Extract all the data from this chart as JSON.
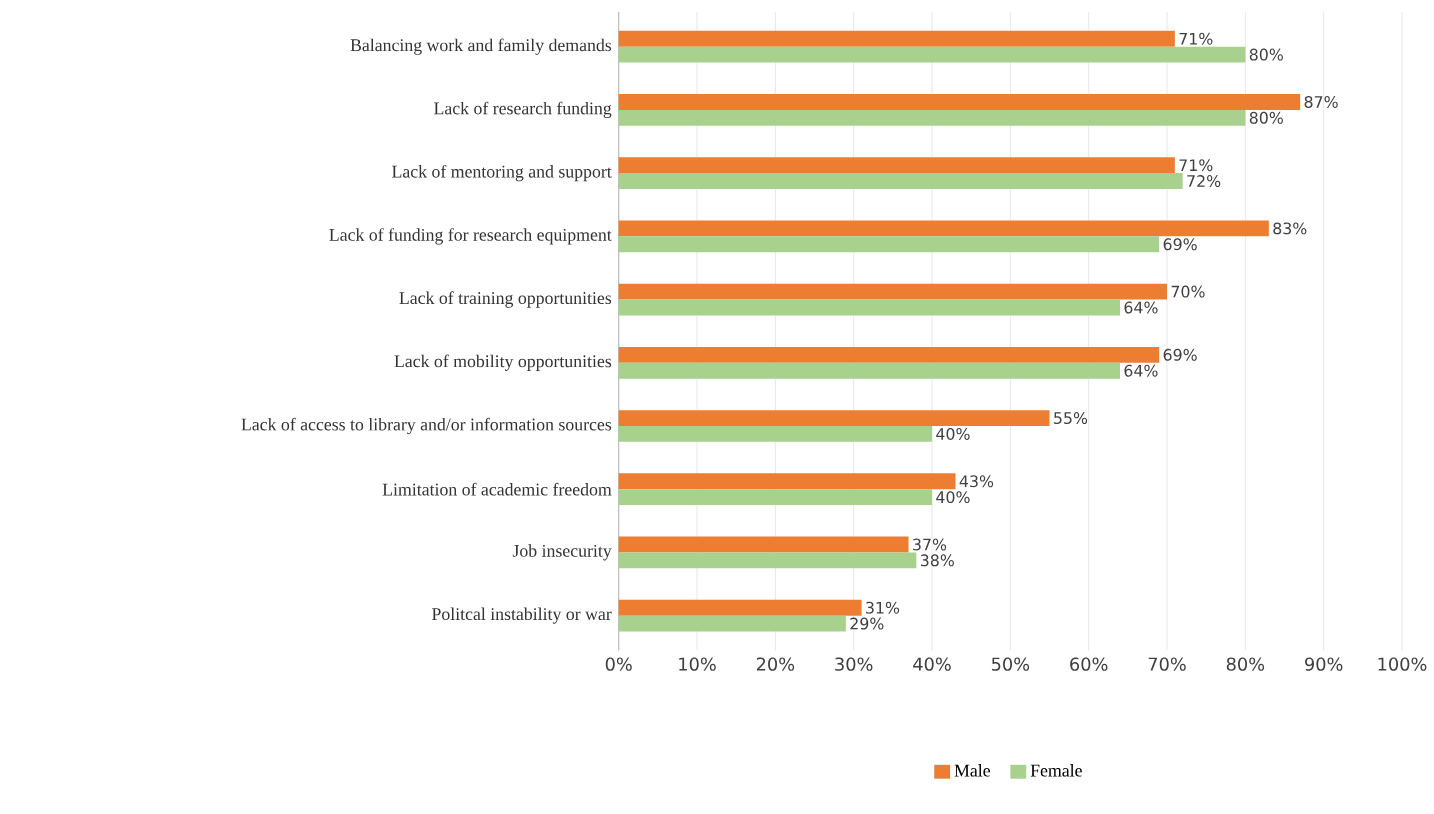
{
  "chart_data": {
    "type": "bar",
    "orientation": "horizontal",
    "categories": [
      "Balancing work and family demands",
      "Lack of research funding",
      "Lack of mentoring and support",
      "Lack of funding for research equipment",
      "Lack of training opportunities",
      "Lack of mobility opportunities",
      "Lack of access to library and/or information sources",
      "Limitation of academic freedom",
      "Job insecurity",
      "Politcal instability or war"
    ],
    "series": [
      {
        "name": "Male",
        "color": "#ed7d31",
        "values": [
          71,
          87,
          71,
          83,
          70,
          69,
          55,
          43,
          37,
          31
        ],
        "value_labels": [
          "71%",
          "87%",
          "71%",
          "83%",
          "70%",
          "69%",
          "55%",
          "43%",
          "37%",
          "31%"
        ]
      },
      {
        "name": "Female",
        "color": "#a9d18e",
        "values": [
          80,
          80,
          72,
          69,
          64,
          64,
          40,
          40,
          38,
          29
        ],
        "value_labels": [
          "80%",
          "80%",
          "72%",
          "69%",
          "64%",
          "64%",
          "40%",
          "40%",
          "38%",
          "29%"
        ]
      }
    ],
    "xlim": [
      0,
      100
    ],
    "xticks": [
      {
        "value": 0,
        "label": "0%"
      },
      {
        "value": 10,
        "label": "10%"
      },
      {
        "value": 20,
        "label": "20%"
      },
      {
        "value": 30,
        "label": "30%"
      },
      {
        "value": 40,
        "label": "40%"
      },
      {
        "value": 50,
        "label": "50%"
      },
      {
        "value": 60,
        "label": "60%"
      },
      {
        "value": 70,
        "label": "70%"
      },
      {
        "value": 80,
        "label": "80%"
      },
      {
        "value": 90,
        "label": "90%"
      },
      {
        "value": 100,
        "label": "100%"
      }
    ],
    "grid": "x",
    "legend": "bottom"
  }
}
